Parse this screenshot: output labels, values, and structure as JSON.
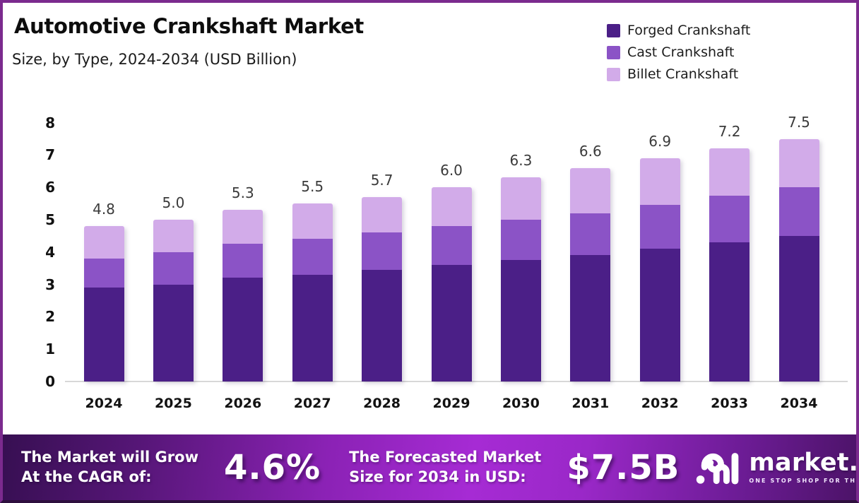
{
  "header": {
    "title": "Automotive Crankshaft Market",
    "subtitle": "Size, by Type, 2024-2034 (USD Billion)"
  },
  "legend": [
    {
      "label": "Forged Crankshaft",
      "color": "#4b1f87"
    },
    {
      "label": "Cast Crankshaft",
      "color": "#8b53c6"
    },
    {
      "label": "Billet Crankshaft",
      "color": "#d2abe9"
    }
  ],
  "chart_data": {
    "type": "bar",
    "stacked": true,
    "title": "Automotive Crankshaft Market",
    "subtitle": "Size, by Type, 2024-2034 (USD Billion)",
    "categories": [
      "2024",
      "2025",
      "2026",
      "2027",
      "2028",
      "2029",
      "2030",
      "2031",
      "2032",
      "2033",
      "2034"
    ],
    "series": [
      {
        "name": "Forged Crankshaft",
        "color": "#4b1f87",
        "values": [
          2.9,
          3.0,
          3.2,
          3.3,
          3.45,
          3.6,
          3.75,
          3.9,
          4.1,
          4.3,
          4.5
        ]
      },
      {
        "name": "Cast Crankshaft",
        "color": "#8b53c6",
        "values": [
          0.9,
          1.0,
          1.05,
          1.1,
          1.15,
          1.2,
          1.25,
          1.3,
          1.35,
          1.45,
          1.5
        ]
      },
      {
        "name": "Billet Crankshaft",
        "color": "#d2abe9",
        "values": [
          1.0,
          1.0,
          1.05,
          1.1,
          1.1,
          1.2,
          1.3,
          1.4,
          1.45,
          1.45,
          1.5
        ]
      }
    ],
    "totals": [
      4.8,
      5.0,
      5.3,
      5.5,
      5.7,
      6.0,
      6.3,
      6.6,
      6.9,
      7.2,
      7.5
    ],
    "totals_labels": [
      "4.8",
      "5.0",
      "5.3",
      "5.5",
      "5.7",
      "6.0",
      "6.3",
      "6.6",
      "6.9",
      "7.2",
      "7.5"
    ],
    "xlabel": "",
    "ylabel": "",
    "ylim": [
      0,
      8
    ],
    "yticks": [
      "0",
      "1",
      "2",
      "3",
      "4",
      "5",
      "6",
      "7",
      "8"
    ],
    "grid": false,
    "legend_position": "top-right"
  },
  "footer": {
    "cagr_label_line1": "The Market will Grow",
    "cagr_label_line2": "At the CAGR of:",
    "cagr_value": "4.6%",
    "forecast_label_line1": "The Forecasted Market",
    "forecast_label_line2": "Size for 2034 in USD:",
    "forecast_value": "$7.5B",
    "brand_name": "market.us",
    "brand_tagline": "ONE STOP SHOP FOR THE REPORTS"
  }
}
